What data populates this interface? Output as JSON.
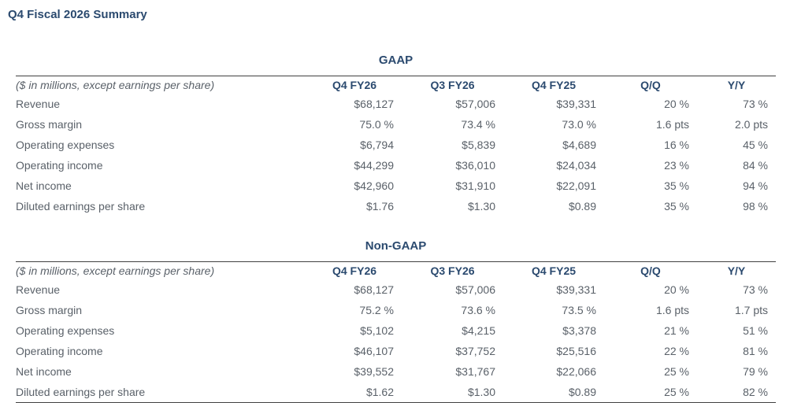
{
  "page_title": "Q4 Fiscal 2026 Summary",
  "colors": {
    "heading_navy": "#2b4a6f",
    "body_gray": "#5a6169",
    "rule_dark": "#404040",
    "background": "#ffffff"
  },
  "tables": [
    {
      "title": "GAAP",
      "unit_note": "($ in millions, except earnings per share)",
      "columns": [
        "Q4 FY26",
        "Q3 FY26",
        "Q4 FY25",
        "Q/Q",
        "Y/Y"
      ],
      "rows": [
        {
          "label": "Revenue",
          "values": [
            "$68,127",
            "$57,006",
            "$39,331",
            "20 %",
            "73 %"
          ]
        },
        {
          "label": "Gross margin",
          "values": [
            "75.0 %",
            "73.4 %",
            "73.0 %",
            "1.6 pts",
            "2.0 pts"
          ]
        },
        {
          "label": "Operating expenses",
          "values": [
            "$6,794",
            "$5,839",
            "$4,689",
            "16 %",
            "45 %"
          ]
        },
        {
          "label": "Operating income",
          "values": [
            "$44,299",
            "$36,010",
            "$24,034",
            "23 %",
            "84 %"
          ]
        },
        {
          "label": "Net income",
          "values": [
            "$42,960",
            "$31,910",
            "$22,091",
            "35 %",
            "94 %"
          ]
        },
        {
          "label": "Diluted earnings per share",
          "values": [
            "$1.76",
            "$1.30",
            "$0.89",
            "35 %",
            "98 %"
          ]
        }
      ]
    },
    {
      "title": "Non-GAAP",
      "unit_note": "($ in millions, except earnings per share)",
      "columns": [
        "Q4 FY26",
        "Q3 FY26",
        "Q4 FY25",
        "Q/Q",
        "Y/Y"
      ],
      "rows": [
        {
          "label": "Revenue",
          "values": [
            "$68,127",
            "$57,006",
            "$39,331",
            "20 %",
            "73 %"
          ]
        },
        {
          "label": "Gross margin",
          "values": [
            "75.2 %",
            "73.6 %",
            "73.5 %",
            "1.6 pts",
            "1.7 pts"
          ]
        },
        {
          "label": "Operating expenses",
          "values": [
            "$5,102",
            "$4,215",
            "$3,378",
            "21 %",
            "51 %"
          ]
        },
        {
          "label": "Operating income",
          "values": [
            "$46,107",
            "$37,752",
            "$25,516",
            "22 %",
            "81 %"
          ]
        },
        {
          "label": "Net income",
          "values": [
            "$39,552",
            "$31,767",
            "$22,066",
            "25 %",
            "79 %"
          ]
        },
        {
          "label": "Diluted earnings per share",
          "values": [
            "$1.62",
            "$1.30",
            "$0.89",
            "25 %",
            "82 %"
          ]
        }
      ]
    }
  ]
}
